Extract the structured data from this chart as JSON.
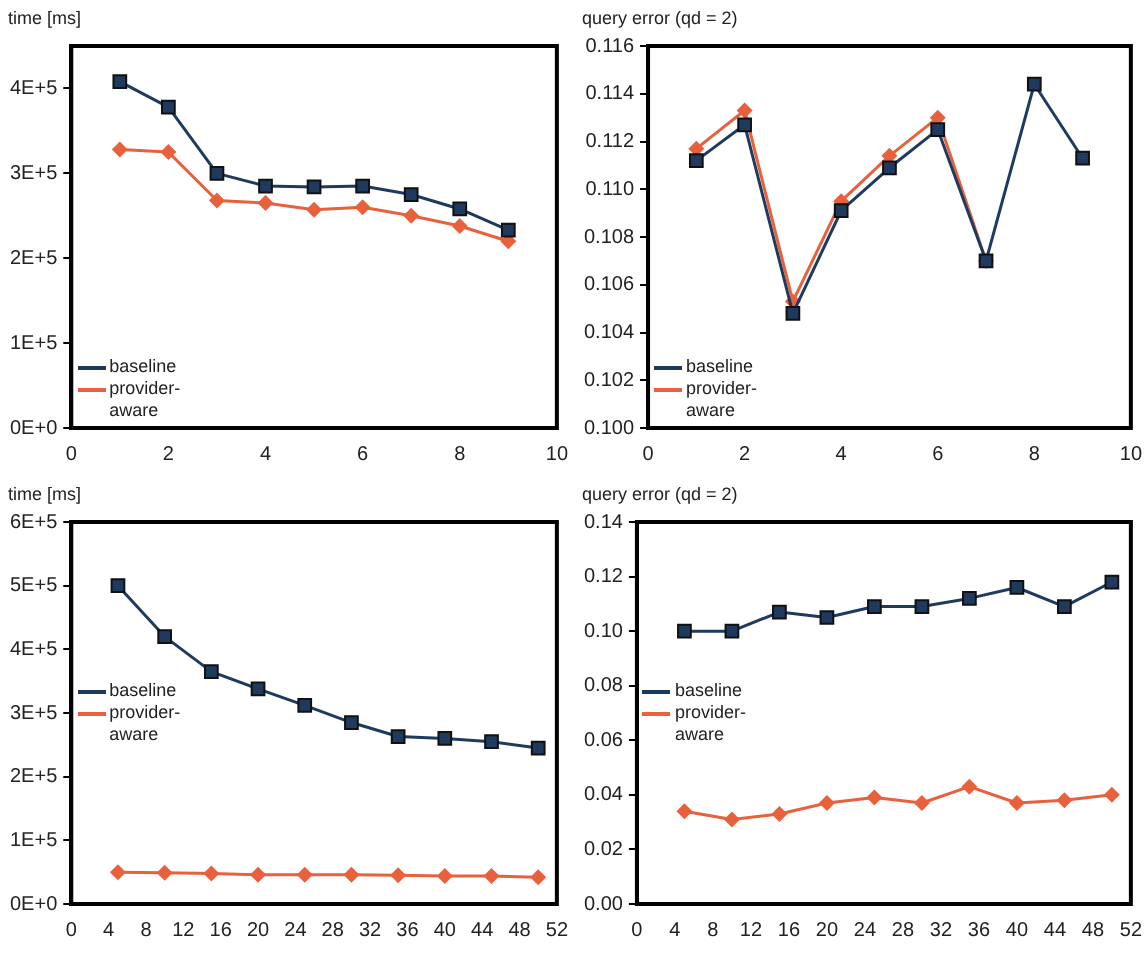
{
  "chart_data": [
    {
      "type": "line",
      "ylabel": "time [ms]",
      "x": [
        1,
        2,
        3,
        4,
        5,
        6,
        7,
        8,
        9
      ],
      "xlim": [
        0,
        10
      ],
      "xticks": [
        0,
        2,
        4,
        6,
        8,
        10
      ],
      "ylim": [
        0,
        450000
      ],
      "yticks": [
        {
          "value": 0,
          "label": "0E+0"
        },
        {
          "value": 100000,
          "label": "1E+5"
        },
        {
          "value": 200000,
          "label": "2E+5"
        },
        {
          "value": 300000,
          "label": "3E+5"
        },
        {
          "value": 400000,
          "label": "4E+5"
        }
      ],
      "grid": false,
      "legend": "bottom left",
      "series": [
        {
          "name": "baseline",
          "color": "#1f3a5f",
          "marker": "square",
          "values": [
            408000,
            378000,
            300000,
            285000,
            284000,
            285000,
            275000,
            258000,
            233000
          ]
        },
        {
          "name": "provider-aware",
          "color": "#e8603c",
          "marker": "diamond",
          "values": [
            328000,
            325000,
            268000,
            265000,
            257000,
            260000,
            250000,
            238000,
            220000
          ]
        }
      ]
    },
    {
      "type": "line",
      "ylabel": "query error (qd = 2)",
      "x": [
        1,
        2,
        3,
        4,
        5,
        6,
        7,
        8,
        9
      ],
      "xlim": [
        0,
        10
      ],
      "xticks": [
        0,
        2,
        4,
        6,
        8,
        10
      ],
      "ylim": [
        0.1,
        0.116
      ],
      "yticks": [
        {
          "value": 0.1,
          "label": "0.100"
        },
        {
          "value": 0.102,
          "label": "0.102"
        },
        {
          "value": 0.104,
          "label": "0.104"
        },
        {
          "value": 0.106,
          "label": "0.106"
        },
        {
          "value": 0.108,
          "label": "0.108"
        },
        {
          "value": 0.11,
          "label": "0.110"
        },
        {
          "value": 0.112,
          "label": "0.112"
        },
        {
          "value": 0.114,
          "label": "0.114"
        },
        {
          "value": 0.116,
          "label": "0.116"
        }
      ],
      "grid": false,
      "legend": "bottom left",
      "series": [
        {
          "name": "baseline",
          "color": "#1f3a5f",
          "marker": "square",
          "values": [
            0.1112,
            0.1127,
            0.1048,
            0.1091,
            0.1109,
            0.1125,
            0.107,
            0.1144,
            0.1113
          ]
        },
        {
          "name": "provider-aware",
          "color": "#e8603c",
          "marker": "diamond",
          "values": [
            0.1117,
            0.1133,
            0.1053,
            0.1095,
            0.1114,
            0.113,
            0.107,
            null,
            null
          ]
        }
      ]
    },
    {
      "type": "line",
      "ylabel": "time [ms]",
      "x": [
        5,
        10,
        15,
        20,
        25,
        30,
        35,
        40,
        45,
        50
      ],
      "xlim": [
        0,
        52
      ],
      "xticks": [
        0,
        4,
        8,
        12,
        16,
        20,
        24,
        28,
        32,
        36,
        40,
        44,
        48,
        52
      ],
      "ylim": [
        0,
        600000
      ],
      "yticks": [
        {
          "value": 0,
          "label": "0E+0"
        },
        {
          "value": 100000,
          "label": "1E+5"
        },
        {
          "value": 200000,
          "label": "2E+5"
        },
        {
          "value": 300000,
          "label": "3E+5"
        },
        {
          "value": 400000,
          "label": "4E+5"
        },
        {
          "value": 500000,
          "label": "5E+5"
        },
        {
          "value": 600000,
          "label": "6E+5"
        }
      ],
      "grid": false,
      "legend": "left",
      "series": [
        {
          "name": "baseline",
          "color": "#1f3a5f",
          "marker": "square",
          "values": [
            500000,
            420000,
            365000,
            338000,
            312000,
            285000,
            263000,
            260000,
            255000,
            245000
          ]
        },
        {
          "name": "provider-aware",
          "color": "#e8603c",
          "marker": "diamond",
          "values": [
            50000,
            49000,
            48000,
            46000,
            46000,
            46000,
            45000,
            44000,
            44000,
            42000
          ]
        }
      ]
    },
    {
      "type": "line",
      "ylabel": "query error (qd = 2)",
      "x": [
        5,
        10,
        15,
        20,
        25,
        30,
        35,
        40,
        45,
        50
      ],
      "xlim": [
        0,
        52
      ],
      "xticks": [
        0,
        4,
        8,
        12,
        16,
        20,
        24,
        28,
        32,
        36,
        40,
        44,
        48,
        52
      ],
      "ylim": [
        0,
        0.14
      ],
      "yticks": [
        {
          "value": 0,
          "label": "0.00"
        },
        {
          "value": 0.02,
          "label": "0.02"
        },
        {
          "value": 0.04,
          "label": "0.04"
        },
        {
          "value": 0.06,
          "label": "0.06"
        },
        {
          "value": 0.08,
          "label": "0.08"
        },
        {
          "value": 0.1,
          "label": "0.10"
        },
        {
          "value": 0.12,
          "label": "0.12"
        },
        {
          "value": 0.14,
          "label": "0.14"
        }
      ],
      "grid": false,
      "legend": "left",
      "series": [
        {
          "name": "baseline",
          "color": "#1f3a5f",
          "marker": "square",
          "values": [
            0.1,
            0.1,
            0.107,
            0.105,
            0.109,
            0.109,
            0.112,
            0.116,
            0.109,
            0.118
          ]
        },
        {
          "name": "provider-aware",
          "color": "#e8603c",
          "marker": "diamond",
          "values": [
            0.034,
            0.031,
            0.033,
            0.037,
            0.039,
            0.037,
            0.043,
            0.037,
            0.038,
            0.04
          ]
        }
      ]
    }
  ]
}
